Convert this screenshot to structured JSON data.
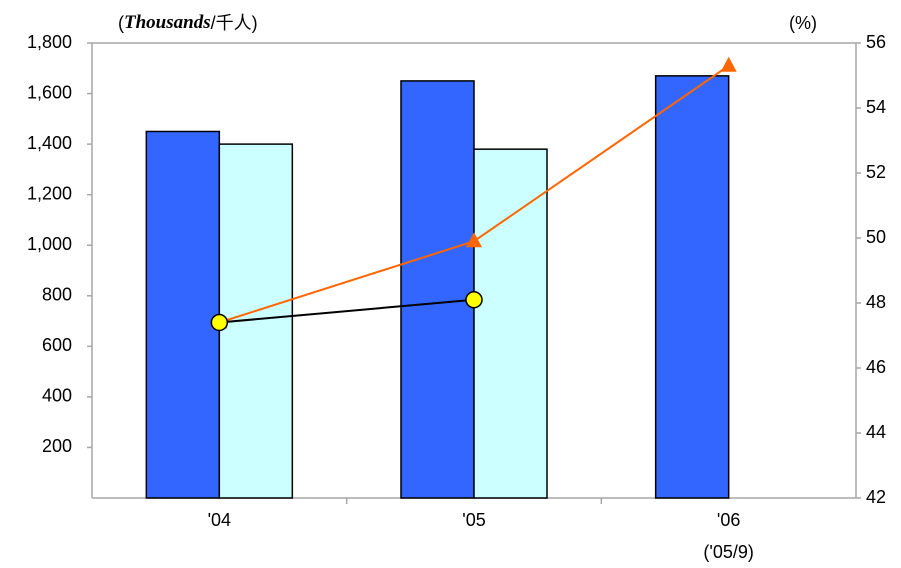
{
  "chart_data": {
    "type": "bar_line",
    "y_label": {
      "open": "(",
      "unit": "Thousands",
      "rest": "/千人)"
    },
    "y2_label": "(%)",
    "categories": [
      "'04",
      "'05",
      "'06"
    ],
    "annotation": "('05/9)",
    "series": [
      {
        "type": "bar",
        "color": "#3366ff",
        "values": [
          1450,
          1650,
          1670
        ]
      },
      {
        "type": "bar",
        "color": "#ccffff",
        "values": [
          1400,
          1380,
          null
        ]
      },
      {
        "type": "line",
        "axis": "y2",
        "color": "#ff6600",
        "marker": "triangle",
        "marker_color": "#ff6600",
        "values": [
          47.4,
          49.9,
          55.3
        ]
      },
      {
        "type": "line",
        "axis": "y2",
        "color": "#000000",
        "marker": "circle",
        "marker_color": "#ffff00",
        "values": [
          47.4,
          48.1,
          null
        ]
      }
    ],
    "ylim": [
      0,
      1800
    ],
    "yticks": [
      200,
      400,
      600,
      800,
      {
        "value": 1000,
        "label": "1,000"
      },
      {
        "value": 1200,
        "label": "1,200"
      },
      {
        "value": 1400,
        "label": "1,400"
      },
      {
        "value": 1600,
        "label": "1,600"
      },
      {
        "value": 1800,
        "label": "1,800"
      }
    ],
    "y2lim": [
      42,
      56
    ],
    "y2ticks": [
      42,
      44,
      46,
      48,
      50,
      52,
      54,
      56
    ]
  }
}
